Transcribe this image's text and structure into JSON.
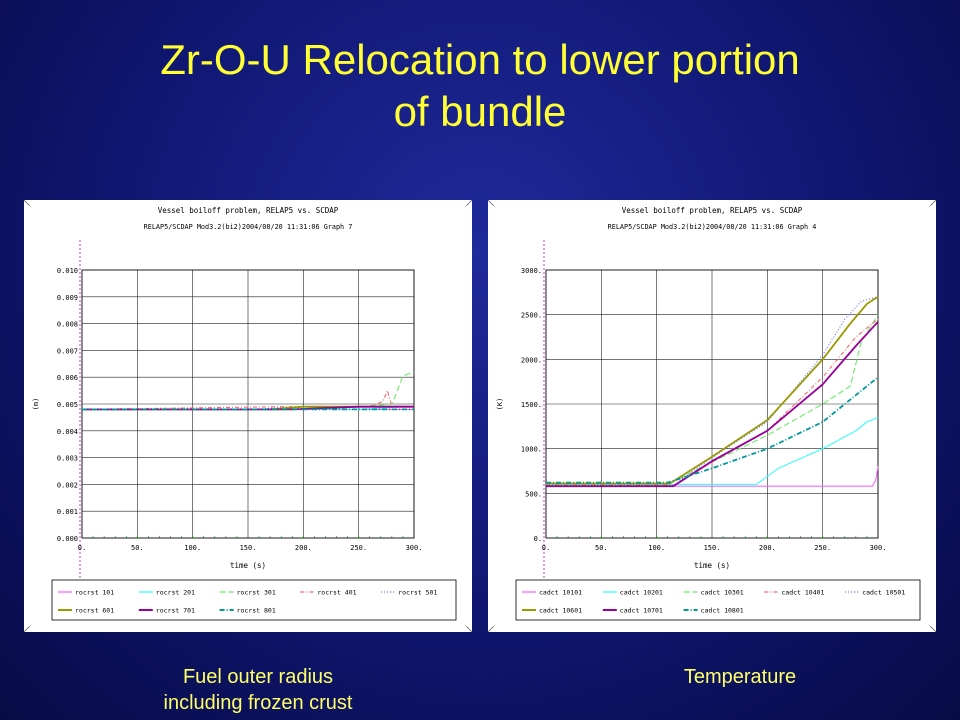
{
  "slide": {
    "title_line1": "Zr-O-U Relocation to lower portion",
    "title_line2": "of bundle",
    "caption_left_line1": "Fuel outer radius",
    "caption_left_line2": "including frozen crust",
    "caption_right": "Temperature"
  },
  "chart_data": [
    {
      "type": "line",
      "title": "Vessel boiloff problem, RELAP5 vs. SCDAP",
      "subtitle": "RELAP5/SCDAP Mod3.2(bi2)2004/08/20   11:31:06     Graph   7",
      "xlabel": "time (s)",
      "ylabel": "(m)",
      "xlim": [
        0,
        300
      ],
      "ylim": [
        0,
        0.01
      ],
      "xticks": [
        "0.",
        "50.",
        "100.",
        "150.",
        "200.",
        "250.",
        "300."
      ],
      "yticks": [
        "0.000",
        "0.001",
        "0.002",
        "0.003",
        "0.004",
        "0.005",
        "0.006",
        "0.007",
        "0.008",
        "0.009",
        "0.010"
      ],
      "grid": true,
      "legend_position": "bottom",
      "series": [
        {
          "name": "rocrst 101",
          "color": "#ff66ff",
          "dash": "",
          "x": [
            0,
            150,
            200,
            250,
            300
          ],
          "y": [
            0.0048,
            0.0048,
            0.0048,
            0.0048,
            0.0048
          ]
        },
        {
          "name": "rocrst 201",
          "color": "#33ffff",
          "dash": "",
          "x": [
            0,
            150,
            200,
            250,
            290,
            300
          ],
          "y": [
            0.0048,
            0.0048,
            0.0048,
            0.0048,
            0.0049,
            0.0049
          ]
        },
        {
          "name": "rocrst 301",
          "color": "#66ee66",
          "dash": "6,3",
          "x": [
            0,
            160,
            200,
            250,
            280,
            285,
            290,
            300
          ],
          "y": [
            0.0048,
            0.0048,
            0.0049,
            0.0049,
            0.005,
            0.0055,
            0.00605,
            0.0062
          ]
        },
        {
          "name": "rocrst 401",
          "color": "#ff6666",
          "dash": "4,2,1,2",
          "x": [
            0,
            180,
            220,
            260,
            272,
            276,
            280
          ],
          "y": [
            0.0048,
            0.0049,
            0.0049,
            0.0049,
            0.0051,
            0.0055,
            0.0049
          ]
        },
        {
          "name": "rocrst 501",
          "color": "#6666ff",
          "dash": "1,2",
          "x": [
            0,
            150,
            200,
            250,
            300
          ],
          "y": [
            0.0048,
            0.0048,
            0.0049,
            0.0049,
            0.0049
          ]
        },
        {
          "name": "rocrst 601",
          "color": "#999900",
          "dash": "",
          "x": [
            0,
            170,
            200,
            250,
            300
          ],
          "y": [
            0.0048,
            0.0048,
            0.0049,
            0.0049,
            0.0049
          ]
        },
        {
          "name": "rocrst 701",
          "color": "#990099",
          "dash": "",
          "x": [
            0,
            190,
            250,
            300
          ],
          "y": [
            0.0048,
            0.0048,
            0.0049,
            0.0049
          ]
        },
        {
          "name": "rocrst 801",
          "color": "#009999",
          "dash": "5,2,1,2",
          "x": [
            0,
            150,
            200,
            250,
            300
          ],
          "y": [
            0.0048,
            0.0048,
            0.0048,
            0.0048,
            0.0048
          ]
        }
      ]
    },
    {
      "type": "line",
      "title": "Vessel boiloff problem, RELAP5 vs. SCDAP",
      "subtitle": "RELAP5/SCDAP Mod3.2(bi2)2004/08/20   11:31:06     Graph   4",
      "xlabel": "time (s)",
      "ylabel": "(K)",
      "xlim": [
        0,
        300
      ],
      "ylim": [
        0,
        3000
      ],
      "xticks": [
        "0.",
        "50.",
        "100.",
        "150.",
        "200.",
        "250.",
        "300."
      ],
      "yticks": [
        "0.",
        "500.",
        "1000.",
        "1500.",
        "2000.",
        "2500.",
        "3000."
      ],
      "grid": true,
      "legend_position": "bottom",
      "series": [
        {
          "name": "cadct 10101",
          "color": "#ff66ff",
          "dash": "",
          "x": [
            0,
            100,
            200,
            250,
            295,
            298,
            300
          ],
          "y": [
            580,
            580,
            580,
            580,
            580,
            650,
            800
          ]
        },
        {
          "name": "cadct 10201",
          "color": "#33ffff",
          "dash": "",
          "x": [
            0,
            190,
            210,
            250,
            280,
            290,
            300
          ],
          "y": [
            600,
            600,
            780,
            1000,
            1200,
            1300,
            1350
          ]
        },
        {
          "name": "cadct 10301",
          "color": "#66ee66",
          "dash": "6,3",
          "x": [
            0,
            110,
            150,
            200,
            250,
            275,
            285,
            300
          ],
          "y": [
            600,
            600,
            850,
            1150,
            1500,
            1700,
            2200,
            2500
          ]
        },
        {
          "name": "cadct 10401",
          "color": "#ff6666",
          "dash": "4,2,1,2",
          "x": [
            0,
            115,
            150,
            200,
            250,
            280,
            300
          ],
          "y": [
            590,
            590,
            850,
            1200,
            1800,
            2250,
            2450
          ]
        },
        {
          "name": "cadct 10501",
          "color": "#6666ff",
          "dash": "1,2",
          "x": [
            0,
            115,
            150,
            200,
            250,
            270,
            285,
            300
          ],
          "y": [
            590,
            590,
            900,
            1300,
            2050,
            2450,
            2650,
            2700
          ]
        },
        {
          "name": "cadct 10601",
          "color": "#999900",
          "dash": "",
          "x": [
            0,
            112,
            150,
            200,
            250,
            275,
            290,
            300
          ],
          "y": [
            610,
            610,
            910,
            1320,
            2000,
            2400,
            2620,
            2700
          ]
        },
        {
          "name": "cadct 10701",
          "color": "#990099",
          "dash": "",
          "x": [
            0,
            115,
            150,
            200,
            250,
            280,
            300
          ],
          "y": [
            580,
            580,
            860,
            1200,
            1720,
            2150,
            2420
          ]
        },
        {
          "name": "cadct 10801",
          "color": "#009999",
          "dash": "5,2,1,2",
          "x": [
            0,
            110,
            150,
            200,
            250,
            280,
            300
          ],
          "y": [
            620,
            620,
            780,
            1000,
            1300,
            1600,
            1800
          ]
        }
      ]
    }
  ]
}
